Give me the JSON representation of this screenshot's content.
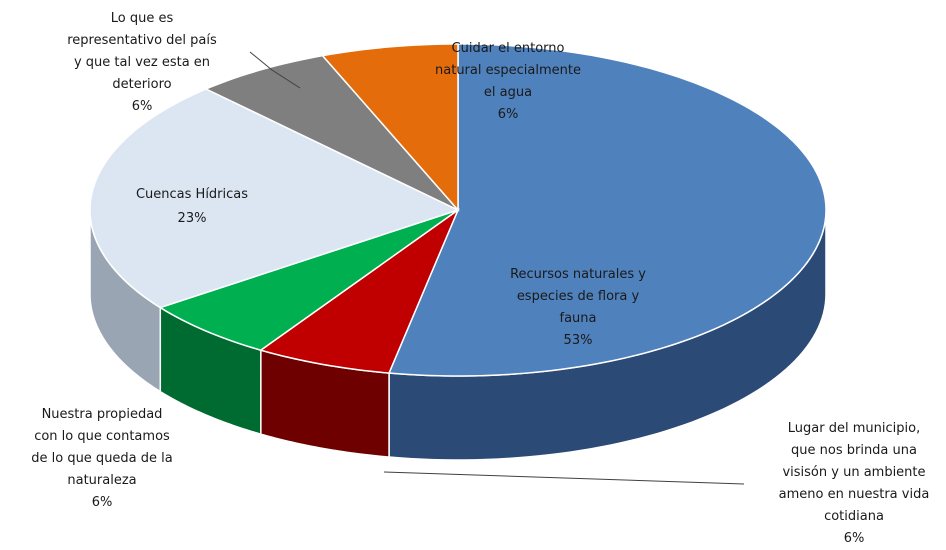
{
  "chart_data": {
    "type": "pie",
    "labels": [
      "Recursos naturales y especies de flora y fauna",
      "Lugar del municipio, que nos brinda una visisón y un ambiente ameno en nuestra vida cotidiana",
      "Nuestra propiedad con lo que contamos de lo que queda de la naturaleza",
      "Cuencas Hídricas",
      "Lo que es representativo del país y que tal vez esta en deterioro",
      "Cuidar el entorno natural especialmente el agua"
    ],
    "values": [
      53,
      6,
      6,
      23,
      6,
      6
    ],
    "colors": [
      "#4f81bd",
      "#c00000",
      "#00b050",
      "#dce6f2",
      "#7f7f7f",
      "#e46c0a"
    ],
    "dark_colors": [
      "#2b4a75",
      "#6e0000",
      "#006b30",
      "#9aa5b3",
      "#4a4a4a",
      "#8c4206"
    ],
    "label_lines": [
      [
        "Recursos naturales y",
        "especies de flora y",
        "fauna",
        "53%"
      ],
      [
        "Lugar del municipio,",
        "que nos brinda una",
        "visisón y un ambiente",
        "ameno en nuestra vida",
        "cotidiana",
        "6%"
      ],
      [
        "Nuestra propiedad",
        "con lo que contamos",
        "de lo que queda de la",
        "naturaleza",
        "6%"
      ],
      [
        "Cuencas Hídricas",
        "23%"
      ],
      [
        "Lo que es",
        "representativo del país",
        "y que tal vez esta en",
        "deterioro",
        "6%"
      ],
      [
        "Cuidar el entorno",
        "natural especialmente",
        "el agua",
        "6%"
      ]
    ],
    "legend": "none",
    "style": "3d-pie"
  }
}
